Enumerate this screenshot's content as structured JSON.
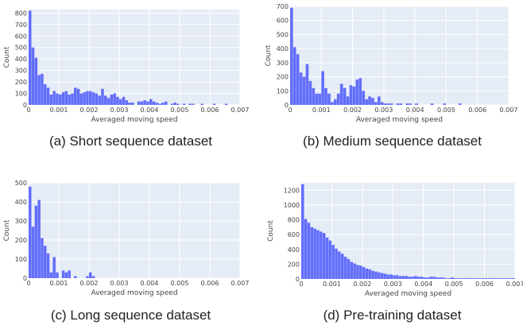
{
  "chart_data": [
    {
      "type": "bar",
      "caption": "(a) Short sequence dataset",
      "xlabel": "Averaged moving speed",
      "ylabel": "Count",
      "xlim": [
        0,
        0.007
      ],
      "ylim": [
        0,
        830
      ],
      "xticks": [
        0,
        0.001,
        0.002,
        0.003,
        0.004,
        0.005,
        0.006,
        0.007
      ],
      "xtick_labels": [
        "0",
        "0.001",
        "0.002",
        "0.003",
        "0.004",
        "0.005",
        "0.006",
        "0.007"
      ],
      "yticks": [
        0,
        100,
        200,
        300,
        400,
        500,
        600,
        700,
        800
      ],
      "bin_width": 0.0001,
      "bar_color": "#636efa",
      "bg_color": "#e5ecf6",
      "bins": [
        0,
        0.0001,
        0.0002,
        0.0003,
        0.0004,
        0.0005,
        0.0006,
        0.0007,
        0.0008,
        0.0009,
        0.001,
        0.0011,
        0.0012,
        0.0013,
        0.0014,
        0.0015,
        0.0016,
        0.0017,
        0.0018,
        0.0019,
        0.002,
        0.0021,
        0.0022,
        0.0023,
        0.0024,
        0.0025,
        0.0026,
        0.0027,
        0.0028,
        0.0029,
        0.003,
        0.0031,
        0.0032,
        0.0033,
        0.0034,
        0.0035,
        0.0036,
        0.0037,
        0.0038,
        0.0039,
        0.004,
        0.0041,
        0.0042,
        0.0043,
        0.0044,
        0.0045,
        0.0046,
        0.0047,
        0.0048,
        0.0049,
        0.005,
        0.0051,
        0.0052,
        0.0053,
        0.0054,
        0.0055,
        0.0056,
        0.0057,
        0.0058,
        0.0059,
        0.006,
        0.0061,
        0.0062,
        0.0063,
        0.0064,
        0.0065,
        0.0066,
        0.0067,
        0.0068,
        0.0069
      ],
      "values": [
        820,
        500,
        410,
        260,
        270,
        180,
        150,
        90,
        120,
        100,
        90,
        110,
        120,
        90,
        100,
        150,
        140,
        100,
        110,
        120,
        120,
        110,
        100,
        80,
        140,
        80,
        60,
        90,
        100,
        70,
        50,
        70,
        40,
        20,
        20,
        0,
        30,
        30,
        40,
        30,
        50,
        30,
        20,
        10,
        20,
        30,
        0,
        10,
        20,
        10,
        0,
        10,
        0,
        10,
        10,
        0,
        0,
        10,
        0,
        0,
        0,
        10,
        0,
        0,
        0,
        10,
        0,
        0,
        0,
        0
      ]
    },
    {
      "type": "bar",
      "caption": "(b) Medium sequence dataset",
      "xlabel": "Averaged moving speed",
      "ylabel": "Count",
      "xlim": [
        0,
        0.007
      ],
      "ylim": [
        0,
        700
      ],
      "xticks": [
        0,
        0.001,
        0.002,
        0.003,
        0.004,
        0.005,
        0.006,
        0.007
      ],
      "xtick_labels": [
        "0",
        "0.001",
        "0.002",
        "0.003",
        "0.004",
        "0.005",
        "0.006",
        "0.007"
      ],
      "yticks": [
        0,
        100,
        200,
        300,
        400,
        500,
        600,
        700
      ],
      "bin_width": 0.0001,
      "bar_color": "#636efa",
      "bg_color": "#e5ecf6",
      "bins": [
        0,
        0.0001,
        0.0002,
        0.0003,
        0.0004,
        0.0005,
        0.0006,
        0.0007,
        0.0008,
        0.0009,
        0.001,
        0.0011,
        0.0012,
        0.0013,
        0.0014,
        0.0015,
        0.0016,
        0.0017,
        0.0018,
        0.0019,
        0.002,
        0.0021,
        0.0022,
        0.0023,
        0.0024,
        0.0025,
        0.0026,
        0.0027,
        0.0028,
        0.0029,
        0.003,
        0.0031,
        0.0032,
        0.0033,
        0.0034,
        0.0035,
        0.0036,
        0.0037,
        0.0038,
        0.0039,
        0.004,
        0.0041,
        0.0042,
        0.0043,
        0.0044,
        0.0045,
        0.0046,
        0.0047,
        0.0048,
        0.0049,
        0.005,
        0.0051,
        0.0052,
        0.0053,
        0.0054,
        0.0055,
        0.0056,
        0.0057,
        0.0058,
        0.0059,
        0.006,
        0.0061,
        0.0062,
        0.0063,
        0.0064,
        0.0065,
        0.0066,
        0.0067,
        0.0068,
        0.0069
      ],
      "values": [
        690,
        410,
        360,
        230,
        200,
        290,
        170,
        120,
        80,
        80,
        240,
        120,
        80,
        20,
        40,
        80,
        150,
        120,
        60,
        140,
        130,
        180,
        190,
        100,
        40,
        60,
        50,
        20,
        60,
        20,
        10,
        10,
        10,
        0,
        10,
        10,
        0,
        10,
        10,
        0,
        10,
        0,
        0,
        0,
        0,
        10,
        0,
        0,
        0,
        10,
        0,
        0,
        0,
        0,
        10,
        0,
        0,
        0,
        0,
        0,
        0,
        0,
        0,
        0,
        0,
        0,
        0,
        0,
        0,
        0
      ]
    },
    {
      "type": "bar",
      "caption": "(c) Long sequence dataset",
      "xlabel": "Averaged moving speed",
      "ylabel": "Count",
      "xlim": [
        0,
        0.007
      ],
      "ylim": [
        0,
        500
      ],
      "xticks": [
        0,
        0.001,
        0.002,
        0.003,
        0.004,
        0.005,
        0.006,
        0.007
      ],
      "xtick_labels": [
        "0",
        "0.001",
        "0.002",
        "0.003",
        "0.004",
        "0.005",
        "0.006",
        "0.007"
      ],
      "yticks": [
        0,
        100,
        200,
        300,
        400,
        500
      ],
      "bin_width": 0.0001,
      "bar_color": "#636efa",
      "bg_color": "#e5ecf6",
      "bins": [
        0,
        0.0001,
        0.0002,
        0.0003,
        0.0004,
        0.0005,
        0.0006,
        0.0007,
        0.0008,
        0.0009,
        0.001,
        0.0011,
        0.0012,
        0.0013,
        0.0014,
        0.0015,
        0.0016,
        0.0017,
        0.0018,
        0.0019,
        0.002,
        0.0021,
        0.0022,
        0.0023,
        0.0024,
        0.0025,
        0.0026,
        0.0027,
        0.0028,
        0.0029,
        0.003,
        0.0031,
        0.0032,
        0.0033,
        0.0034,
        0.0035,
        0.0036,
        0.0037,
        0.0038,
        0.0039,
        0.004,
        0.0041,
        0.0042,
        0.0043,
        0.0044,
        0.0045,
        0.0046,
        0.0047,
        0.0048,
        0.0049,
        0.005,
        0.0051,
        0.0052,
        0.0053,
        0.0054,
        0.0055,
        0.0056,
        0.0057,
        0.0058,
        0.0059,
        0.006,
        0.0061,
        0.0062,
        0.0063,
        0.0064,
        0.0065,
        0.0066,
        0.0067,
        0.0068,
        0.0069
      ],
      "values": [
        480,
        270,
        380,
        410,
        210,
        170,
        130,
        30,
        110,
        30,
        0,
        40,
        30,
        40,
        0,
        10,
        0,
        0,
        0,
        10,
        30,
        10,
        0,
        0,
        0,
        0,
        0,
        0,
        0,
        0,
        0,
        0,
        0,
        0,
        0,
        0,
        0,
        0,
        0,
        0,
        0,
        0,
        0,
        0,
        0,
        0,
        0,
        0,
        0,
        0,
        0,
        0,
        0,
        0,
        0,
        0,
        0,
        0,
        0,
        0,
        0,
        0,
        0,
        0,
        0,
        0,
        0,
        0,
        0,
        0
      ]
    },
    {
      "type": "bar",
      "caption": "(d) Pre-training dataset",
      "xlabel": "Averaged moving speed",
      "ylabel": "Count",
      "xlim": [
        0,
        0.007
      ],
      "ylim": [
        0,
        1300
      ],
      "xticks": [
        0,
        0.001,
        0.002,
        0.003,
        0.004,
        0.005,
        0.006,
        0.007
      ],
      "xtick_labels": [
        "0",
        "0.001",
        "0.002",
        "0.003",
        "0.004",
        "0.005",
        "0.006",
        "0.007"
      ],
      "yticks": [
        0,
        200,
        400,
        600,
        800,
        1000,
        1200
      ],
      "bin_width": 0.0001,
      "bar_color": "#636efa",
      "bg_color": "#e5ecf6",
      "bins": [
        0,
        0.0001,
        0.0002,
        0.0003,
        0.0004,
        0.0005,
        0.0006,
        0.0007,
        0.0008,
        0.0009,
        0.001,
        0.0011,
        0.0012,
        0.0013,
        0.0014,
        0.0015,
        0.0016,
        0.0017,
        0.0018,
        0.0019,
        0.002,
        0.0021,
        0.0022,
        0.0023,
        0.0024,
        0.0025,
        0.0026,
        0.0027,
        0.0028,
        0.0029,
        0.003,
        0.0031,
        0.0032,
        0.0033,
        0.0034,
        0.0035,
        0.0036,
        0.0037,
        0.0038,
        0.0039,
        0.004,
        0.0041,
        0.0042,
        0.0043,
        0.0044,
        0.0045,
        0.0046,
        0.0047,
        0.0048,
        0.0049,
        0.005,
        0.0051,
        0.0052,
        0.0053,
        0.0054,
        0.0055,
        0.0056,
        0.0057,
        0.0058,
        0.0059,
        0.006,
        0.0061,
        0.0062,
        0.0063,
        0.0064,
        0.0065,
        0.0066,
        0.0067,
        0.0068,
        0.0069
      ],
      "values": [
        1280,
        810,
        760,
        700,
        680,
        660,
        640,
        620,
        560,
        520,
        460,
        410,
        370,
        340,
        300,
        270,
        230,
        210,
        190,
        180,
        160,
        140,
        130,
        110,
        100,
        90,
        80,
        70,
        60,
        60,
        50,
        50,
        40,
        40,
        40,
        30,
        30,
        40,
        30,
        30,
        20,
        20,
        30,
        30,
        20,
        20,
        20,
        10,
        10,
        20,
        10,
        10,
        10,
        10,
        10,
        10,
        10,
        10,
        10,
        10,
        10,
        10,
        10,
        10,
        10,
        10,
        10,
        10,
        10,
        10
      ]
    }
  ]
}
